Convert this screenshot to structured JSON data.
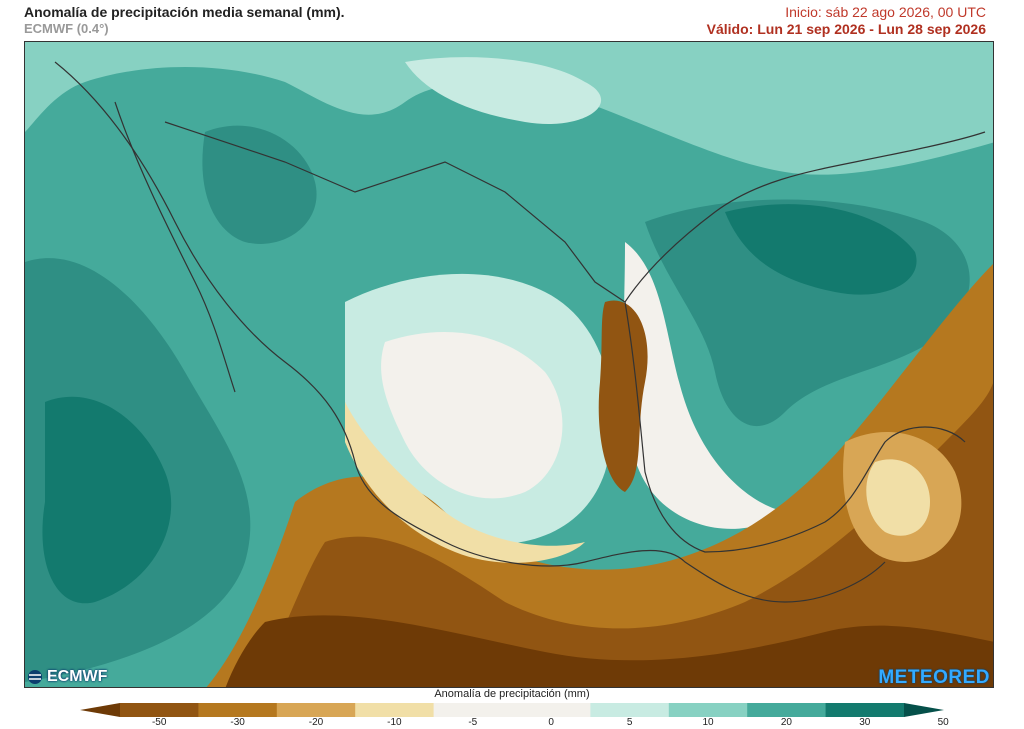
{
  "header": {
    "title": "Anomalía de precipitación media semanal (mm).",
    "model": "ECMWF (0.4°)",
    "init": "Inicio:  sáb 22 ago 2026, 00 UTC",
    "valid": "Válido: Lun 21 sep 2026 - Lun 28 sep 2026"
  },
  "logos": {
    "left": "ECMWF",
    "right": "METEORED"
  },
  "colorbar": {
    "title": "Anomalía de precipitación (mm)",
    "ticks": [
      "-50",
      "-30",
      "-20",
      "-10",
      "-5",
      "0",
      "5",
      "10",
      "20",
      "30",
      "50"
    ],
    "colors": [
      "#6e3a06",
      "#915512",
      "#b5781f",
      "#d8a655",
      "#f1dfa7",
      "#f3f1ec",
      "#f3f1ec",
      "#c8ebe2",
      "#87d1c2",
      "#45aa9b",
      "#137a6e",
      "#05504a"
    ]
  },
  "map_colors": {
    "ocean_wet": "#2f8f84",
    "ocean_very_wet": "#137a6e",
    "light_teal": "#87d1c2",
    "pale": "#c8ebe2",
    "dry_light": "#f1dfa7",
    "dry_mid": "#b5781f",
    "dry_deep": "#7a4309",
    "neutral": "#f3f1ec",
    "border": "#333333"
  }
}
